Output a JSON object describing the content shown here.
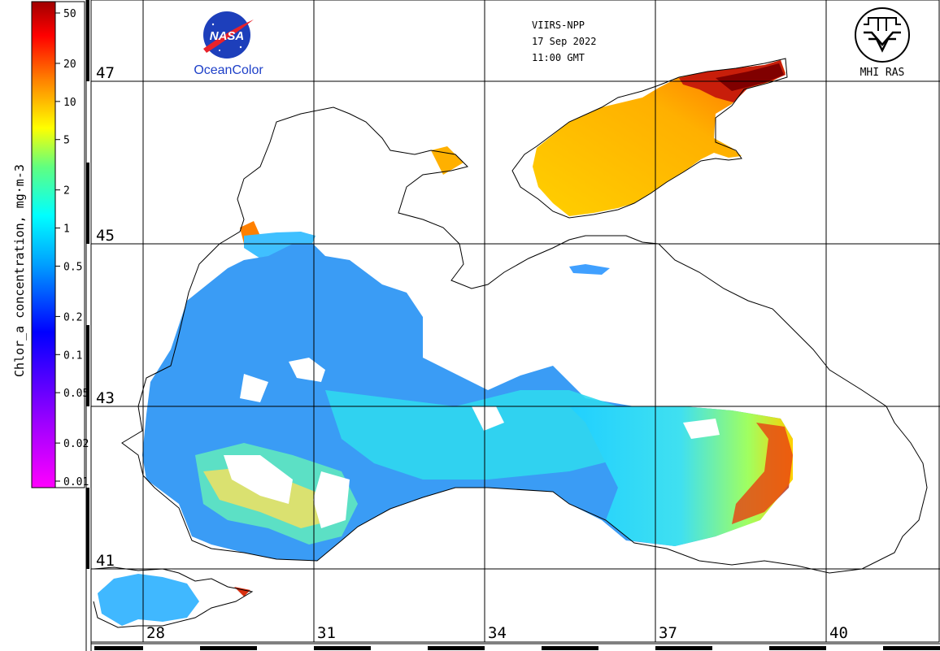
{
  "header": {
    "sensor": "VIIRS-NPP",
    "date": "17 Sep 2022",
    "time": "11:00 GMT"
  },
  "logos": {
    "nasa_text": "NASA",
    "nasa_caption": "OceanColor",
    "mhi_caption": "MHI RAS"
  },
  "colorbar": {
    "title": "Chlor_a concentration, mg·m-3",
    "ticks": [
      "50",
      "20",
      "10",
      "5",
      "2",
      "1",
      "0.5",
      "0.2",
      "0.1",
      "0.05",
      "0.02",
      "0.01"
    ],
    "scale": "log",
    "range": [
      0.01,
      60
    ],
    "colors": [
      "#ff00ff",
      "#8000ff",
      "#0000ff",
      "#00a0ff",
      "#00ffff",
      "#00ff80",
      "#ffff00",
      "#ff8000",
      "#ff0000",
      "#a00000"
    ]
  },
  "map": {
    "latitude_labels": [
      "47",
      "45",
      "43",
      "41"
    ],
    "longitude_labels": [
      "28",
      "31",
      "34",
      "37",
      "40"
    ]
  }
}
